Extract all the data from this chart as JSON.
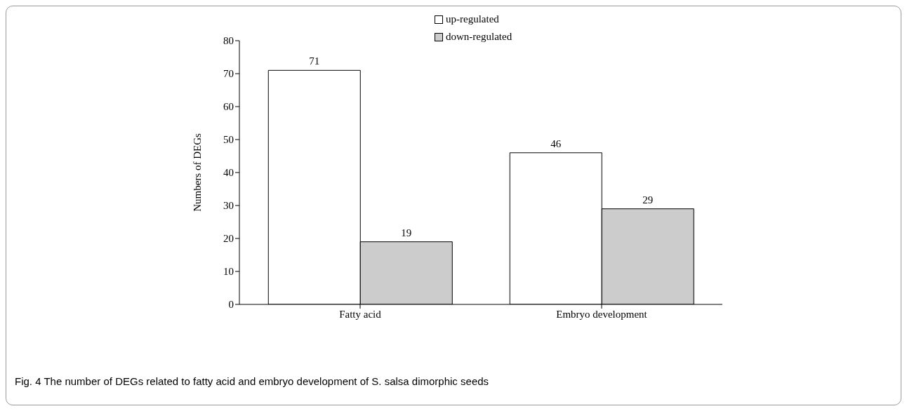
{
  "chart_data": {
    "type": "bar",
    "ylabel": "Numbers of DEGs",
    "categories": [
      "Fatty acid",
      "Embryo development"
    ],
    "series": [
      {
        "name": "up-regulated",
        "color": "#ffffff",
        "values": [
          71,
          46
        ]
      },
      {
        "name": "down-regulated",
        "color": "#cccccc",
        "values": [
          19,
          29
        ]
      }
    ],
    "ylim": [
      0,
      80
    ],
    "yticks": [
      0,
      10,
      20,
      30,
      40,
      50,
      60,
      70,
      80
    ],
    "grid": false,
    "legend": "top",
    "data_labels": true,
    "annotations": [
      "Fig. 4 The number of DEGs related to fatty acid and embryo development of S. salsa dimorphic seeds"
    ]
  }
}
